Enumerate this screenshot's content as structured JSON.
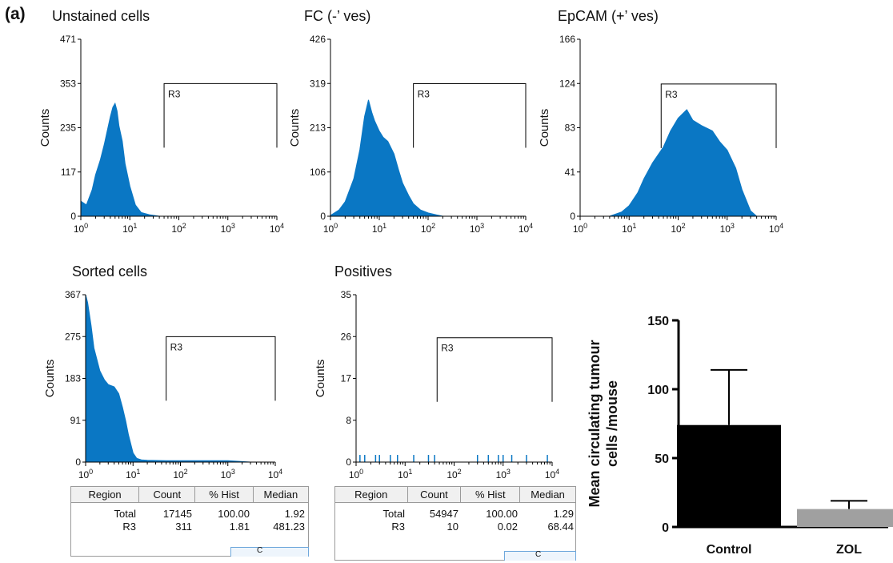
{
  "panel_label": "(a)",
  "chart_data": [
    {
      "type": "area",
      "title": "Unstained cells",
      "ylabel": "Counts",
      "xscale": "log",
      "xlim": [
        1,
        10000
      ],
      "ylim": [
        0,
        471
      ],
      "yticks": [
        "0",
        "117",
        "235",
        "353",
        "471"
      ],
      "xticks": [
        "10^0",
        "10^1",
        "10^2",
        "10^3",
        "10^4"
      ],
      "gate": {
        "label": "R3",
        "x": [
          50,
          10000
        ],
        "height": 353
      },
      "x": [
        1.0,
        1.3,
        1.7,
        2.0,
        2.5,
        3.0,
        3.5,
        4.0,
        4.5,
        5.0,
        5.5,
        6.0,
        7.0,
        8.0,
        10,
        13,
        17,
        25,
        40
      ],
      "y": [
        40,
        30,
        70,
        110,
        150,
        190,
        230,
        265,
        290,
        300,
        280,
        240,
        200,
        140,
        80,
        30,
        10,
        4,
        0
      ]
    },
    {
      "type": "area",
      "title": "FC (-’ ves)",
      "ylabel": "Counts",
      "xscale": "log",
      "xlim": [
        1,
        10000
      ],
      "ylim": [
        0,
        426
      ],
      "yticks": [
        "0",
        "106",
        "213",
        "319",
        "426"
      ],
      "xticks": [
        "10^0",
        "10^1",
        "10^2",
        "10^3",
        "10^4"
      ],
      "gate": {
        "label": "R3",
        "x": [
          50,
          10000
        ],
        "height": 319
      },
      "x": [
        1.0,
        1.5,
        2.0,
        3.0,
        4.0,
        5.0,
        6.0,
        7.0,
        8.0,
        10,
        12,
        15,
        20,
        25,
        30,
        40,
        50,
        70,
        100,
        150,
        200
      ],
      "y": [
        2,
        15,
        35,
        90,
        160,
        240,
        280,
        250,
        230,
        205,
        190,
        180,
        150,
        110,
        80,
        50,
        30,
        15,
        8,
        3,
        0
      ]
    },
    {
      "type": "area",
      "title": "EpCAM (+’ ves)",
      "ylabel": "Counts",
      "xscale": "log",
      "xlim": [
        1,
        10000
      ],
      "ylim": [
        0,
        166
      ],
      "yticks": [
        "0",
        "41",
        "83",
        "124",
        "166"
      ],
      "xticks": [
        "10^0",
        "10^1",
        "10^2",
        "10^3",
        "10^4"
      ],
      "gate": {
        "label": "R3",
        "x": [
          45,
          10000
        ],
        "height": 124
      },
      "x": [
        4,
        7,
        10,
        15,
        20,
        30,
        50,
        70,
        100,
        150,
        200,
        300,
        500,
        700,
        1000,
        1500,
        2000,
        3000,
        4000
      ],
      "y": [
        0,
        4,
        10,
        22,
        35,
        50,
        65,
        80,
        92,
        100,
        90,
        85,
        80,
        70,
        62,
        45,
        25,
        5,
        0
      ]
    },
    {
      "type": "area",
      "title": "Sorted cells",
      "ylabel": "Counts",
      "xscale": "log",
      "xlim": [
        1,
        10000
      ],
      "ylim": [
        0,
        367
      ],
      "yticks": [
        "0",
        "91",
        "183",
        "275",
        "367"
      ],
      "xticks": [
        "10^0",
        "10^1",
        "10^2",
        "10^3",
        "10^4"
      ],
      "gate": {
        "label": "R3",
        "x": [
          50,
          10000
        ],
        "height": 275
      },
      "x": [
        1.0,
        1.1,
        1.3,
        1.5,
        2.0,
        2.5,
        3.0,
        4.0,
        5.0,
        6.0,
        7.0,
        8.0,
        10,
        12,
        15,
        20,
        50,
        200,
        1000,
        3000
      ],
      "y": [
        367,
        350,
        300,
        250,
        200,
        180,
        170,
        165,
        150,
        120,
        90,
        60,
        20,
        8,
        5,
        4,
        3,
        3,
        3,
        0
      ]
    },
    {
      "type": "area",
      "title": "Positives",
      "ylabel": "Counts",
      "xscale": "log",
      "xlim": [
        1,
        10000
      ],
      "ylim": [
        0,
        35
      ],
      "yticks": [
        "0",
        "8",
        "17",
        "26",
        "35"
      ],
      "xticks": [
        "10^0",
        "10^1",
        "10^2",
        "10^3",
        "10^4"
      ],
      "gate": {
        "label": "R3",
        "x": [
          45,
          10000
        ],
        "height": 26
      },
      "spikes": [
        1.2,
        1.5,
        2.5,
        3,
        5,
        7,
        15,
        30,
        40,
        300,
        500,
        800,
        1000,
        1500,
        3000,
        8000
      ],
      "spike_height": 1.5
    },
    {
      "type": "bar",
      "ylabel": "Mean circulating tumour cells /mouse",
      "categories": [
        "Control",
        "ZOL"
      ],
      "values": [
        74,
        13
      ],
      "errors": [
        40,
        6
      ],
      "colors": [
        "#000000",
        "#a0a0a0"
      ],
      "ylim": [
        0,
        150
      ],
      "yticks": [
        "0",
        "50",
        "100",
        "150"
      ]
    }
  ],
  "tables": [
    {
      "headers": [
        "Region",
        "Count",
        "% Hist",
        "Median"
      ],
      "rows": [
        [
          "Total",
          "17145",
          "100.00",
          "1.92"
        ],
        [
          "R3",
          "311",
          "1.81",
          "481.23"
        ]
      ],
      "tab_text": "C"
    },
    {
      "headers": [
        "Region",
        "Count",
        "% Hist",
        "Median"
      ],
      "rows": [
        [
          "Total",
          "54947",
          "100.00",
          "1.29"
        ],
        [
          "R3",
          "10",
          "0.02",
          "68.44"
        ]
      ],
      "tab_text": "C"
    }
  ],
  "colors": {
    "histogram": "#0a77c4"
  }
}
